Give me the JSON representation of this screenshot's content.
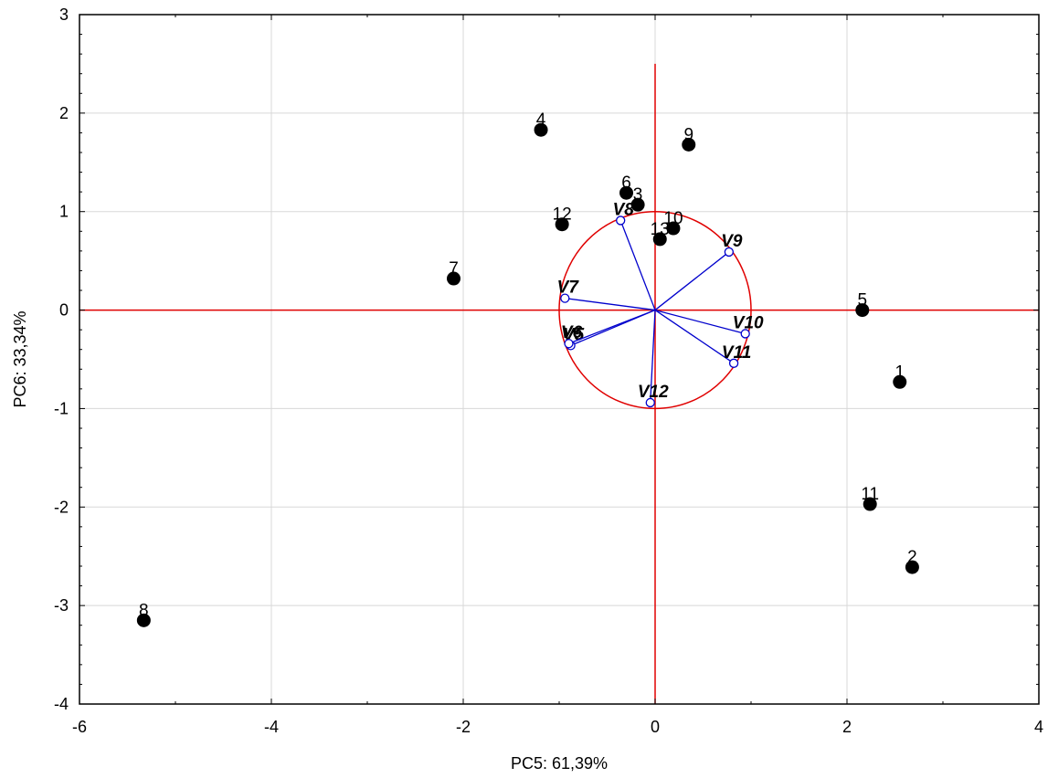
{
  "chart_data": {
    "type": "scatter",
    "title": "",
    "xlabel": "PC5: 61,39%",
    "ylabel": "PC6: 33,34%",
    "xlim": [
      -6,
      4
    ],
    "ylim": [
      -4,
      3
    ],
    "xticks": [
      -6,
      -4,
      -2,
      0,
      2,
      4
    ],
    "yticks": [
      -4,
      -3,
      -2,
      -1,
      0,
      1,
      2,
      3
    ],
    "grid": true,
    "unit_circle_radius": 1,
    "points": [
      {
        "label": "1",
        "x": 2.55,
        "y": -0.73
      },
      {
        "label": "2",
        "x": 2.68,
        "y": -2.61
      },
      {
        "label": "3",
        "x": -0.18,
        "y": 1.07
      },
      {
        "label": "4",
        "x": -1.19,
        "y": 1.83
      },
      {
        "label": "5",
        "x": 2.16,
        "y": 0.0
      },
      {
        "label": "6",
        "x": -0.3,
        "y": 1.19
      },
      {
        "label": "7",
        "x": -2.1,
        "y": 0.32
      },
      {
        "label": "8",
        "x": -5.33,
        "y": -3.15
      },
      {
        "label": "9",
        "x": 0.35,
        "y": 1.68
      },
      {
        "label": "10",
        "x": 0.19,
        "y": 0.83
      },
      {
        "label": "11",
        "x": 2.24,
        "y": -1.97
      },
      {
        "label": "12",
        "x": -0.97,
        "y": 0.87
      },
      {
        "label": "13",
        "x": 0.05,
        "y": 0.72
      }
    ],
    "vectors": [
      {
        "label": "V5",
        "x": -0.88,
        "y": -0.36
      },
      {
        "label": "V6",
        "x": -0.9,
        "y": -0.34
      },
      {
        "label": "V7",
        "x": -0.94,
        "y": 0.12
      },
      {
        "label": "V8",
        "x": -0.36,
        "y": 0.91
      },
      {
        "label": "V9",
        "x": 0.77,
        "y": 0.59
      },
      {
        "label": "V10",
        "x": 0.94,
        "y": -0.24
      },
      {
        "label": "V11",
        "x": 0.82,
        "y": -0.54
      },
      {
        "label": "V12",
        "x": -0.05,
        "y": -0.94
      }
    ],
    "colors": {
      "points": "#000000",
      "vectors": "#0000cc",
      "axes_lines": "#e00000",
      "grid": "#d8d8d8"
    }
  }
}
